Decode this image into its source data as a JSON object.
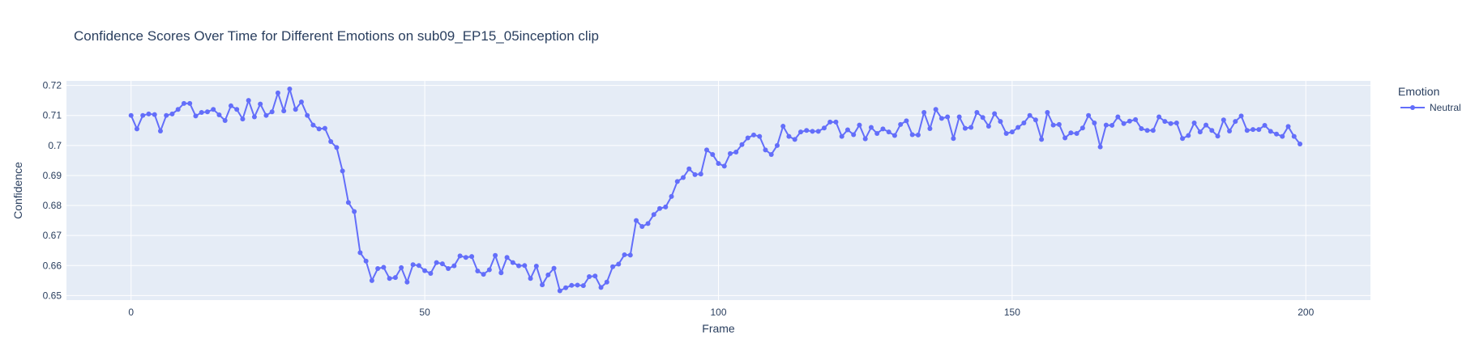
{
  "chart_data": {
    "type": "line",
    "title": "Confidence Scores Over Time for Different Emotions on sub09_EP15_05inception clip",
    "xlabel": "Frame",
    "ylabel": "Confidence",
    "xlim": [
      -11,
      211
    ],
    "ylim": [
      0.6485,
      0.7215
    ],
    "x_ticks": [
      0,
      50,
      100,
      150,
      200
    ],
    "y_ticks": [
      0.65,
      0.66,
      0.67,
      0.68,
      0.69,
      0.7,
      0.71,
      0.72
    ],
    "y_tick_labels": [
      "0.65",
      "0.66",
      "0.67",
      "0.68",
      "0.69",
      "0.7",
      "0.71",
      "0.72"
    ],
    "grid": true,
    "legend": {
      "title": "Emotion",
      "position": "top-right"
    },
    "colors": {
      "series": "#636efa",
      "plot_bg": "#e5ecf6",
      "grid": "#ffffff",
      "text": "#2a3f5f"
    },
    "series": [
      {
        "name": "Neutral",
        "marker": "circle",
        "x_start": 0,
        "x_step": 1,
        "values": [
          0.71,
          0.7055,
          0.71,
          0.7105,
          0.7103,
          0.7048,
          0.71,
          0.7105,
          0.712,
          0.714,
          0.714,
          0.7098,
          0.711,
          0.7112,
          0.712,
          0.7102,
          0.7083,
          0.7132,
          0.712,
          0.7088,
          0.715,
          0.7095,
          0.7138,
          0.71,
          0.7112,
          0.7175,
          0.7115,
          0.7188,
          0.712,
          0.7145,
          0.71,
          0.7068,
          0.7055,
          0.7057,
          0.7013,
          0.6993,
          0.6915,
          0.681,
          0.678,
          0.6643,
          0.6615,
          0.655,
          0.659,
          0.6594,
          0.6557,
          0.656,
          0.6593,
          0.6545,
          0.6603,
          0.66,
          0.6583,
          0.6574,
          0.661,
          0.6606,
          0.659,
          0.6599,
          0.6632,
          0.6627,
          0.663,
          0.6582,
          0.6571,
          0.6586,
          0.6634,
          0.6576,
          0.6627,
          0.661,
          0.6599,
          0.66,
          0.6557,
          0.6598,
          0.6536,
          0.6569,
          0.6591,
          0.6516,
          0.6526,
          0.6534,
          0.6535,
          0.6533,
          0.6563,
          0.6565,
          0.6527,
          0.6545,
          0.6596,
          0.6605,
          0.6636,
          0.6635,
          0.675,
          0.673,
          0.674,
          0.677,
          0.679,
          0.6795,
          0.683,
          0.688,
          0.6893,
          0.6922,
          0.6903,
          0.6905,
          0.6985,
          0.697,
          0.694,
          0.6931,
          0.6973,
          0.6978,
          0.7003,
          0.7025,
          0.7035,
          0.703,
          0.6985,
          0.697,
          0.7,
          0.7064,
          0.703,
          0.702,
          0.7045,
          0.705,
          0.7047,
          0.7047,
          0.7058,
          0.7078,
          0.7078,
          0.703,
          0.7052,
          0.7036,
          0.7068,
          0.7022,
          0.706,
          0.704,
          0.7055,
          0.7045,
          0.7033,
          0.707,
          0.7082,
          0.7036,
          0.7035,
          0.711,
          0.7056,
          0.712,
          0.709,
          0.7095,
          0.7023,
          0.7095,
          0.7057,
          0.706,
          0.711,
          0.7093,
          0.7064,
          0.7106,
          0.708,
          0.704,
          0.7045,
          0.706,
          0.7075,
          0.71,
          0.7085,
          0.702,
          0.711,
          0.7068,
          0.707,
          0.7025,
          0.7042,
          0.704,
          0.7058,
          0.71,
          0.7075,
          0.6995,
          0.7068,
          0.7067,
          0.7095,
          0.7073,
          0.7081,
          0.7086,
          0.7056,
          0.705,
          0.705,
          0.7095,
          0.708,
          0.7073,
          0.7075,
          0.7023,
          0.7033,
          0.7075,
          0.7045,
          0.7068,
          0.705,
          0.7031,
          0.7085,
          0.7048,
          0.708,
          0.7098,
          0.705,
          0.7053,
          0.7053,
          0.7067,
          0.7047,
          0.7038,
          0.703,
          0.7063,
          0.703,
          0.7005
        ]
      }
    ]
  }
}
